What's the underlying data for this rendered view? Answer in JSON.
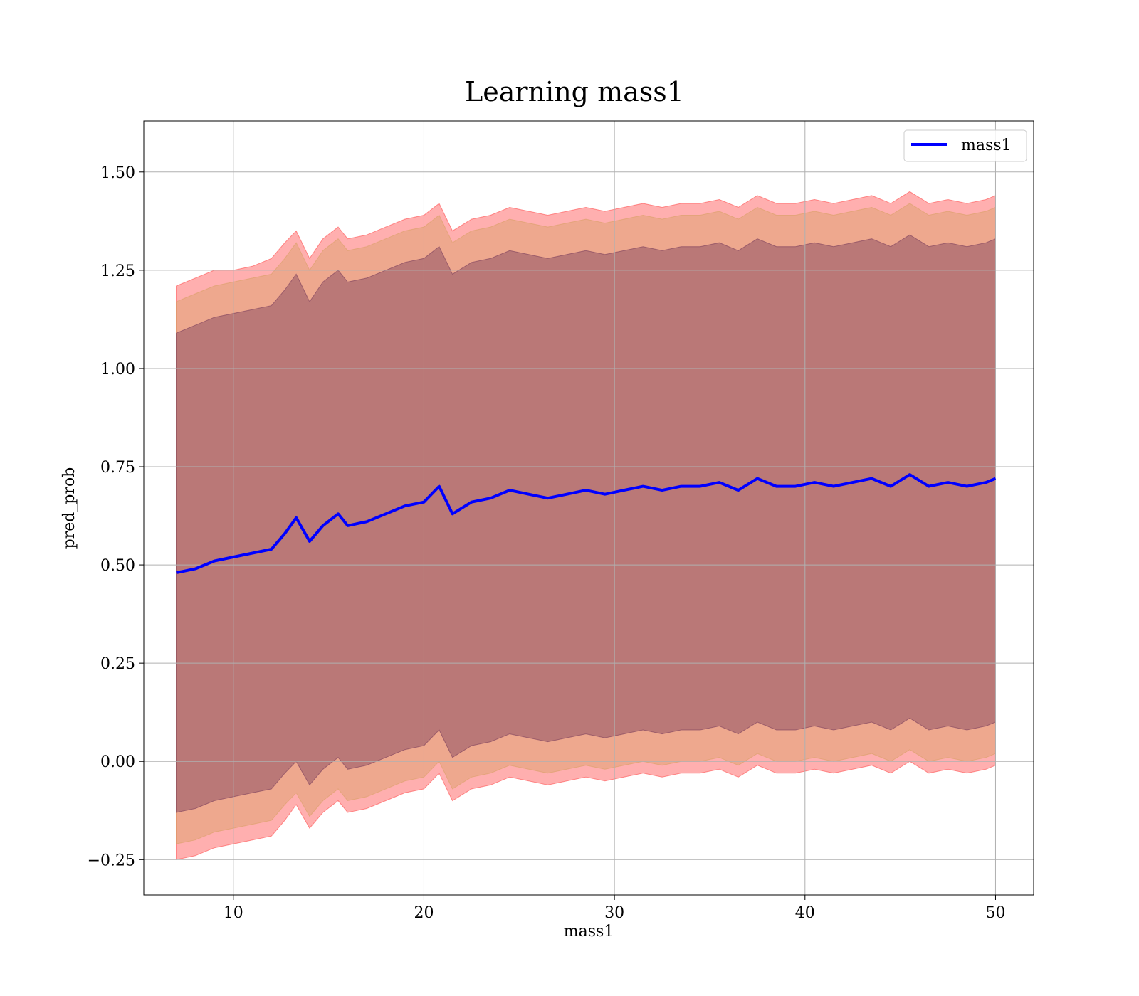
{
  "chart_data": {
    "type": "line",
    "title": "Learning mass1",
    "xlabel": "mass1",
    "ylabel": "pred_prob",
    "xlim": [
      5.3,
      52.0
    ],
    "ylim": [
      -0.34,
      1.63
    ],
    "xticks": [
      10,
      20,
      30,
      40,
      50
    ],
    "yticks": [
      -0.25,
      0.0,
      0.25,
      0.5,
      0.75,
      1.0,
      1.25,
      1.5
    ],
    "xtick_labels": [
      "10",
      "20",
      "30",
      "40",
      "50"
    ],
    "ytick_labels": [
      "−0.25",
      "0.00",
      "0.25",
      "0.50",
      "0.75",
      "1.00",
      "1.25",
      "1.50"
    ],
    "grid": true,
    "legend": {
      "placement": "upper-right",
      "entries": [
        "mass1"
      ]
    },
    "x": [
      7,
      8,
      9,
      10,
      11,
      12,
      12.7,
      13.3,
      14,
      14.7,
      15.5,
      16,
      17,
      18,
      19,
      20,
      20.8,
      21.5,
      22.5,
      23.5,
      24.5,
      25.5,
      26.5,
      27.5,
      28.5,
      29.5,
      30.5,
      31.5,
      32.5,
      33.5,
      34.5,
      35.5,
      36.5,
      37.5,
      38.5,
      39.5,
      40.5,
      41.5,
      42.5,
      43.5,
      44.5,
      45.5,
      46.5,
      47.5,
      48.5,
      49.5,
      50
    ],
    "series": [
      {
        "name": "mass1",
        "color": "#0000ff",
        "values": [
          0.48,
          0.49,
          0.51,
          0.52,
          0.53,
          0.54,
          0.58,
          0.62,
          0.56,
          0.6,
          0.63,
          0.6,
          0.61,
          0.63,
          0.65,
          0.66,
          0.7,
          0.63,
          0.66,
          0.67,
          0.69,
          0.68,
          0.67,
          0.68,
          0.69,
          0.68,
          0.69,
          0.7,
          0.69,
          0.7,
          0.7,
          0.71,
          0.69,
          0.72,
          0.7,
          0.7,
          0.71,
          0.7,
          0.71,
          0.72,
          0.7,
          0.73,
          0.7,
          0.71,
          0.7,
          0.71,
          0.72
        ]
      }
    ],
    "bands": [
      {
        "color": "#ff4d4d",
        "upper": [
          1.21,
          1.23,
          1.25,
          1.25,
          1.26,
          1.28,
          1.32,
          1.35,
          1.28,
          1.33,
          1.36,
          1.33,
          1.34,
          1.36,
          1.38,
          1.39,
          1.42,
          1.35,
          1.38,
          1.39,
          1.41,
          1.4,
          1.39,
          1.4,
          1.41,
          1.4,
          1.41,
          1.42,
          1.41,
          1.42,
          1.42,
          1.43,
          1.41,
          1.44,
          1.42,
          1.42,
          1.43,
          1.42,
          1.43,
          1.44,
          1.42,
          1.45,
          1.42,
          1.43,
          1.42,
          1.43,
          1.44
        ],
        "lower": [
          -0.25,
          -0.24,
          -0.22,
          -0.21,
          -0.2,
          -0.19,
          -0.15,
          -0.11,
          -0.17,
          -0.13,
          -0.1,
          -0.13,
          -0.12,
          -0.1,
          -0.08,
          -0.07,
          -0.03,
          -0.1,
          -0.07,
          -0.06,
          -0.04,
          -0.05,
          -0.06,
          -0.05,
          -0.04,
          -0.05,
          -0.04,
          -0.03,
          -0.04,
          -0.03,
          -0.03,
          -0.02,
          -0.04,
          -0.01,
          -0.03,
          -0.03,
          -0.02,
          -0.03,
          -0.02,
          -0.01,
          -0.03,
          0.0,
          -0.03,
          -0.02,
          -0.03,
          -0.02,
          -0.01
        ]
      },
      {
        "color": "#d9a066",
        "upper": [
          1.17,
          1.19,
          1.21,
          1.22,
          1.23,
          1.24,
          1.28,
          1.32,
          1.25,
          1.3,
          1.33,
          1.3,
          1.31,
          1.33,
          1.35,
          1.36,
          1.39,
          1.32,
          1.35,
          1.36,
          1.38,
          1.37,
          1.36,
          1.37,
          1.38,
          1.37,
          1.38,
          1.39,
          1.38,
          1.39,
          1.39,
          1.4,
          1.38,
          1.41,
          1.39,
          1.39,
          1.4,
          1.39,
          1.4,
          1.41,
          1.39,
          1.42,
          1.39,
          1.4,
          1.39,
          1.4,
          1.41
        ],
        "lower": [
          -0.21,
          -0.2,
          -0.18,
          -0.17,
          -0.16,
          -0.15,
          -0.11,
          -0.08,
          -0.14,
          -0.1,
          -0.07,
          -0.1,
          -0.09,
          -0.07,
          -0.05,
          -0.04,
          0.0,
          -0.07,
          -0.04,
          -0.03,
          -0.01,
          -0.02,
          -0.03,
          -0.02,
          -0.01,
          -0.02,
          -0.01,
          0.0,
          -0.01,
          0.0,
          0.0,
          0.01,
          -0.01,
          0.02,
          0.0,
          0.0,
          0.01,
          0.0,
          0.01,
          0.02,
          0.0,
          0.03,
          0.0,
          0.01,
          0.0,
          0.01,
          0.02
        ]
      },
      {
        "color": "#7a3d5c",
        "upper": [
          1.09,
          1.11,
          1.13,
          1.14,
          1.15,
          1.16,
          1.2,
          1.24,
          1.17,
          1.22,
          1.25,
          1.22,
          1.23,
          1.25,
          1.27,
          1.28,
          1.31,
          1.24,
          1.27,
          1.28,
          1.3,
          1.29,
          1.28,
          1.29,
          1.3,
          1.29,
          1.3,
          1.31,
          1.3,
          1.31,
          1.31,
          1.32,
          1.3,
          1.33,
          1.31,
          1.31,
          1.32,
          1.31,
          1.32,
          1.33,
          1.31,
          1.34,
          1.31,
          1.32,
          1.31,
          1.32,
          1.33
        ],
        "lower": [
          -0.13,
          -0.12,
          -0.1,
          -0.09,
          -0.08,
          -0.07,
          -0.03,
          0.0,
          -0.06,
          -0.02,
          0.01,
          -0.02,
          -0.01,
          0.01,
          0.03,
          0.04,
          0.08,
          0.01,
          0.04,
          0.05,
          0.07,
          0.06,
          0.05,
          0.06,
          0.07,
          0.06,
          0.07,
          0.08,
          0.07,
          0.08,
          0.08,
          0.09,
          0.07,
          0.1,
          0.08,
          0.08,
          0.09,
          0.08,
          0.09,
          0.1,
          0.08,
          0.11,
          0.08,
          0.09,
          0.08,
          0.09,
          0.1
        ]
      }
    ]
  }
}
